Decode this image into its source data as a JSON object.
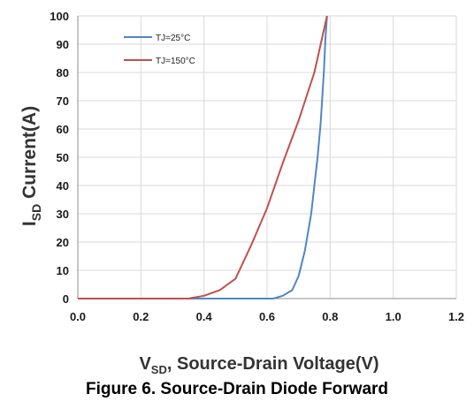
{
  "chart_data": {
    "type": "line",
    "xlim": [
      0.0,
      1.2
    ],
    "ylim": [
      0,
      100
    ],
    "xticks": [
      "0.0",
      "0.2",
      "0.4",
      "0.6",
      "0.8",
      "1.0",
      "1.2"
    ],
    "yticks": [
      "0",
      "10",
      "20",
      "30",
      "40",
      "50",
      "60",
      "70",
      "80",
      "90",
      "100"
    ],
    "grid": true,
    "legend_position": "top-left",
    "ylabel_main": "I",
    "ylabel_sub": "SD",
    "ylabel_rest": " Current(A)",
    "xlabel_main": "V",
    "xlabel_sub": "SD",
    "xlabel_rest": ", Source-Drain Voltage(V)",
    "series": [
      {
        "name": "TJ=25°C",
        "color": "#4f86c6",
        "x": [
          0.0,
          0.62,
          0.65,
          0.68,
          0.7,
          0.72,
          0.74,
          0.76,
          0.77,
          0.78,
          0.785,
          0.79
        ],
        "y": [
          0,
          0,
          1,
          3,
          8,
          17,
          30,
          50,
          62,
          80,
          92,
          100
        ]
      },
      {
        "name": "TJ=150°C",
        "color": "#c0504d",
        "x": [
          0.0,
          0.35,
          0.4,
          0.45,
          0.5,
          0.55,
          0.6,
          0.65,
          0.7,
          0.75,
          0.79
        ],
        "y": [
          0,
          0,
          1,
          3,
          7,
          19,
          32,
          48,
          63,
          80,
          100
        ]
      }
    ]
  },
  "caption": "Figure 6. Source-Drain Diode Forward"
}
